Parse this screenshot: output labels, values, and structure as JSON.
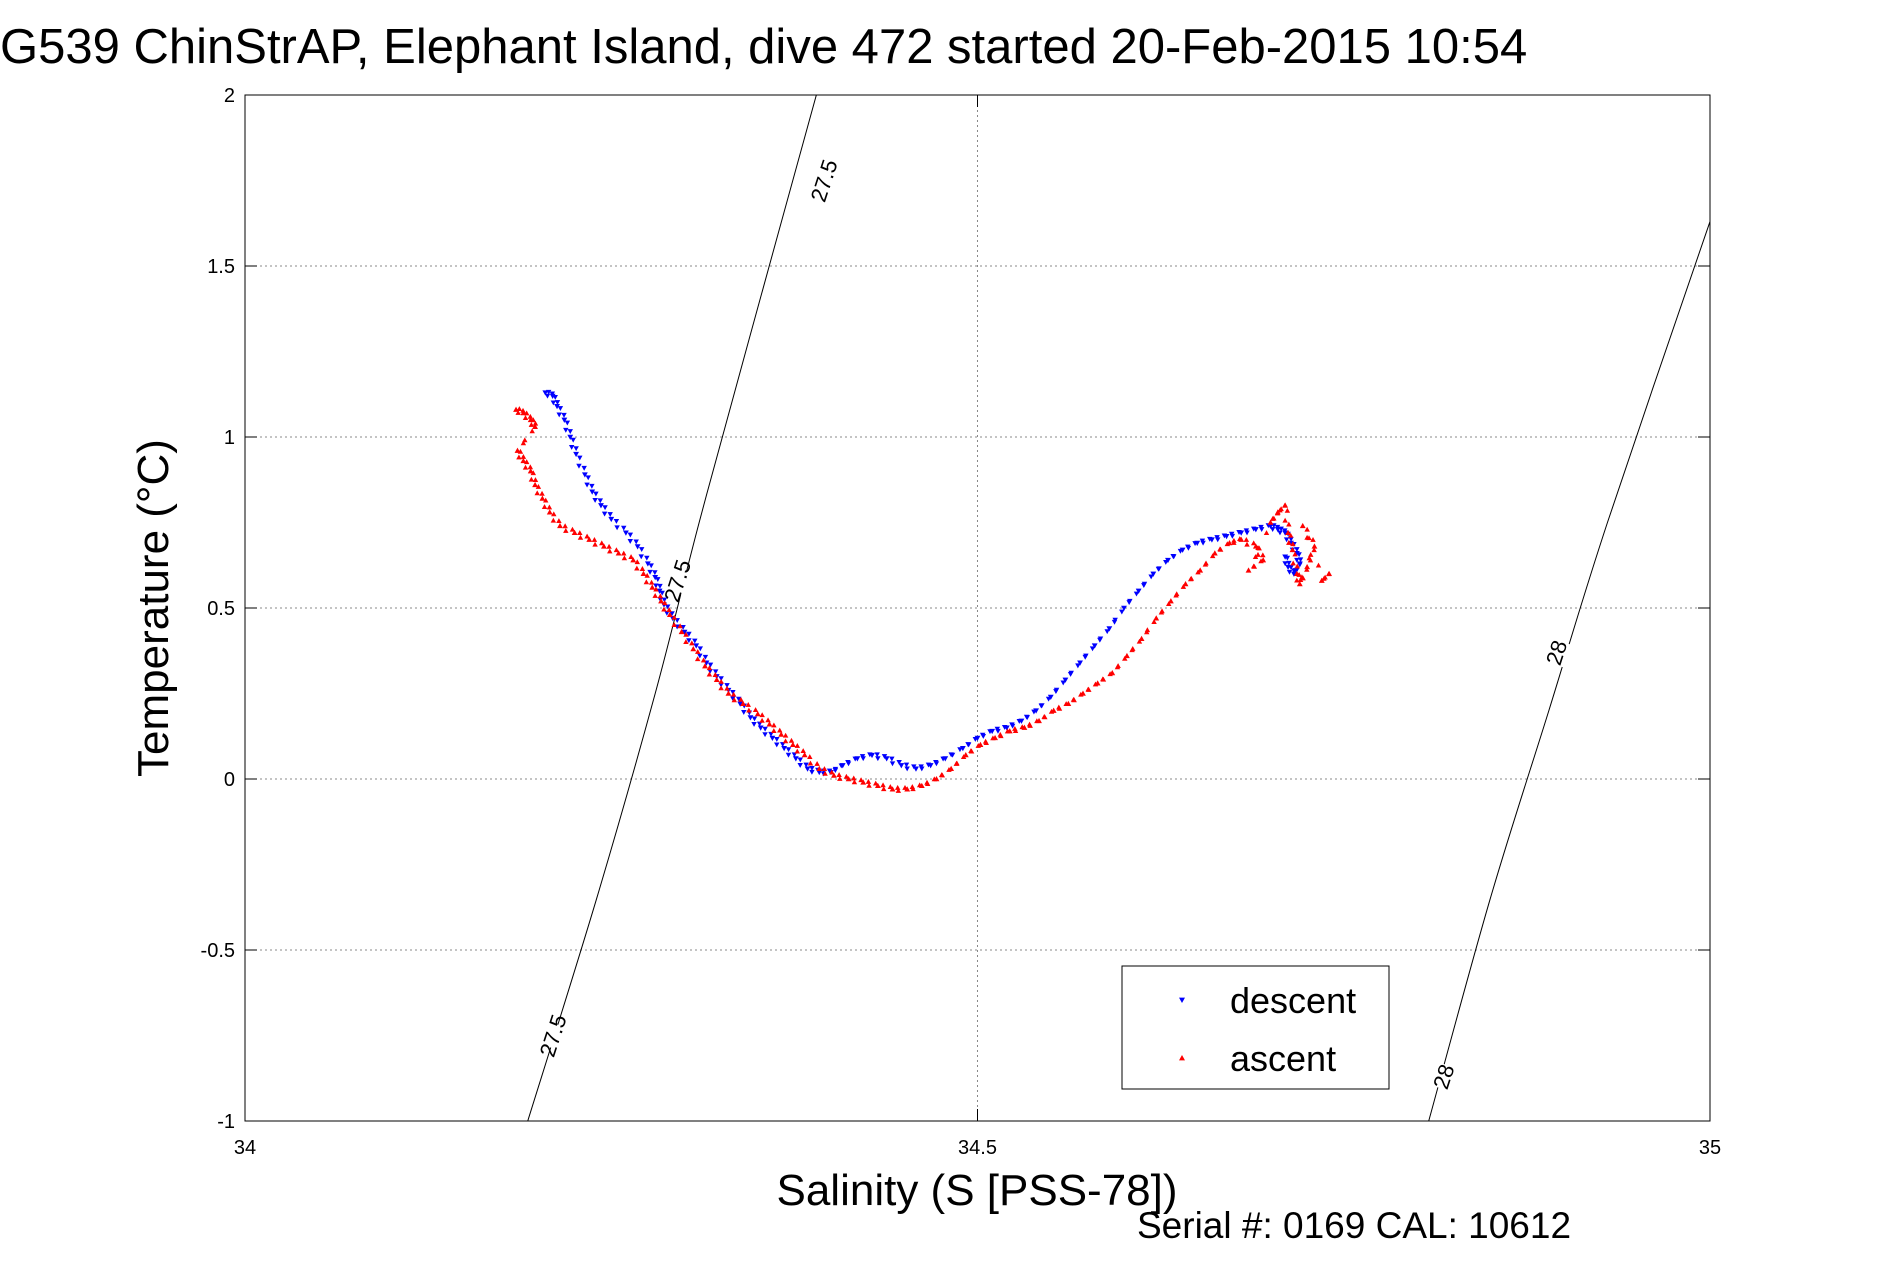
{
  "chart_data": {
    "type": "scatter",
    "title": "G539 ChinStrAP, Elephant Island, dive 472 started 20-Feb-2015 10:54",
    "xlabel": "Salinity (S [PSS-78])",
    "ylabel": "Temperature (°C)",
    "xlim": [
      34,
      35
    ],
    "ylim": [
      -1,
      2
    ],
    "xticks": [
      34,
      34.5,
      35
    ],
    "xtick_labels": [
      "34",
      "34.5",
      "35"
    ],
    "yticks": [
      2,
      1.5,
      1,
      0.5,
      0,
      -0.5,
      -1
    ],
    "ytick_labels": [
      "2",
      "1.5",
      "1",
      "0.5",
      "0",
      "-0.5",
      "-1"
    ],
    "grid": true,
    "legend_position": "bottom-right",
    "footer": "Serial #: 0169 CAL: 10612",
    "series": [
      {
        "name": "descent",
        "color": "#0000ff",
        "marker": "triangle-down",
        "points": [
          [
            34.205,
            1.13
          ],
          [
            34.21,
            1.12
          ],
          [
            34.213,
            1.09
          ],
          [
            34.218,
            1.05
          ],
          [
            34.222,
            1.0
          ],
          [
            34.226,
            0.95
          ],
          [
            34.232,
            0.89
          ],
          [
            34.237,
            0.84
          ],
          [
            34.243,
            0.8
          ],
          [
            34.25,
            0.76
          ],
          [
            34.26,
            0.72
          ],
          [
            34.268,
            0.68
          ],
          [
            34.275,
            0.63
          ],
          [
            34.28,
            0.59
          ],
          [
            34.283,
            0.55
          ],
          [
            34.286,
            0.51
          ],
          [
            34.292,
            0.47
          ],
          [
            34.3,
            0.43
          ],
          [
            34.308,
            0.39
          ],
          [
            34.315,
            0.34
          ],
          [
            34.322,
            0.3
          ],
          [
            34.33,
            0.26
          ],
          [
            34.338,
            0.22
          ],
          [
            34.345,
            0.18
          ],
          [
            34.352,
            0.15
          ],
          [
            34.36,
            0.12
          ],
          [
            34.368,
            0.09
          ],
          [
            34.376,
            0.06
          ],
          [
            34.384,
            0.03
          ],
          [
            34.392,
            0.02
          ],
          [
            34.4,
            0.02
          ],
          [
            34.408,
            0.04
          ],
          [
            34.418,
            0.06
          ],
          [
            34.428,
            0.07
          ],
          [
            34.438,
            0.06
          ],
          [
            34.448,
            0.04
          ],
          [
            34.458,
            0.03
          ],
          [
            34.468,
            0.04
          ],
          [
            34.478,
            0.06
          ],
          [
            34.49,
            0.09
          ],
          [
            34.5,
            0.12
          ],
          [
            34.51,
            0.14
          ],
          [
            34.52,
            0.15
          ],
          [
            34.53,
            0.17
          ],
          [
            34.54,
            0.2
          ],
          [
            34.55,
            0.24
          ],
          [
            34.56,
            0.29
          ],
          [
            34.57,
            0.34
          ],
          [
            34.58,
            0.39
          ],
          [
            34.59,
            0.44
          ],
          [
            34.6,
            0.5
          ],
          [
            34.61,
            0.55
          ],
          [
            34.62,
            0.6
          ],
          [
            34.63,
            0.64
          ],
          [
            34.64,
            0.67
          ],
          [
            34.65,
            0.69
          ],
          [
            34.66,
            0.7
          ],
          [
            34.67,
            0.71
          ],
          [
            34.68,
            0.72
          ],
          [
            34.69,
            0.73
          ],
          [
            34.7,
            0.74
          ],
          [
            34.705,
            0.73
          ],
          [
            34.71,
            0.72
          ],
          [
            34.714,
            0.69
          ],
          [
            34.718,
            0.66
          ],
          [
            34.72,
            0.63
          ],
          [
            34.716,
            0.6
          ],
          [
            34.712,
            0.62
          ],
          [
            34.71,
            0.65
          ]
        ]
      },
      {
        "name": "ascent",
        "color": "#ff0000",
        "marker": "triangle-up",
        "points": [
          [
            34.185,
            1.08
          ],
          [
            34.19,
            1.07
          ],
          [
            34.195,
            1.05
          ],
          [
            34.198,
            1.03
          ],
          [
            34.186,
            0.96
          ],
          [
            34.19,
            0.93
          ],
          [
            34.195,
            0.9
          ],
          [
            34.198,
            0.86
          ],
          [
            34.203,
            0.82
          ],
          [
            34.208,
            0.78
          ],
          [
            34.215,
            0.74
          ],
          [
            34.225,
            0.72
          ],
          [
            34.235,
            0.7
          ],
          [
            34.245,
            0.68
          ],
          [
            34.255,
            0.66
          ],
          [
            34.265,
            0.64
          ],
          [
            34.272,
            0.6
          ],
          [
            34.278,
            0.56
          ],
          [
            34.284,
            0.52
          ],
          [
            34.29,
            0.48
          ],
          [
            34.298,
            0.43
          ],
          [
            34.306,
            0.38
          ],
          [
            34.314,
            0.33
          ],
          [
            34.322,
            0.29
          ],
          [
            34.33,
            0.25
          ],
          [
            34.34,
            0.22
          ],
          [
            34.35,
            0.19
          ],
          [
            34.358,
            0.16
          ],
          [
            34.366,
            0.13
          ],
          [
            34.374,
            0.1
          ],
          [
            34.382,
            0.07
          ],
          [
            34.392,
            0.03
          ],
          [
            34.402,
            0.01
          ],
          [
            34.412,
            0.0
          ],
          [
            34.422,
            -0.01
          ],
          [
            34.432,
            -0.02
          ],
          [
            34.442,
            -0.03
          ],
          [
            34.452,
            -0.03
          ],
          [
            34.462,
            -0.02
          ],
          [
            34.472,
            0.0
          ],
          [
            34.482,
            0.03
          ],
          [
            34.492,
            0.07
          ],
          [
            34.502,
            0.1
          ],
          [
            34.512,
            0.12
          ],
          [
            34.522,
            0.14
          ],
          [
            34.532,
            0.15
          ],
          [
            34.542,
            0.17
          ],
          [
            34.552,
            0.2
          ],
          [
            34.562,
            0.22
          ],
          [
            34.572,
            0.25
          ],
          [
            34.582,
            0.28
          ],
          [
            34.592,
            0.31
          ],
          [
            34.602,
            0.36
          ],
          [
            34.612,
            0.41
          ],
          [
            34.622,
            0.47
          ],
          [
            34.632,
            0.52
          ],
          [
            34.642,
            0.57
          ],
          [
            34.652,
            0.61
          ],
          [
            34.662,
            0.66
          ],
          [
            34.672,
            0.69
          ],
          [
            34.68,
            0.7
          ],
          [
            34.69,
            0.68
          ],
          [
            34.695,
            0.64
          ],
          [
            34.685,
            0.61
          ],
          [
            34.7,
            0.75
          ],
          [
            34.705,
            0.78
          ],
          [
            34.71,
            0.8
          ],
          [
            34.712,
            0.72
          ],
          [
            34.715,
            0.67
          ],
          [
            34.718,
            0.6
          ],
          [
            34.72,
            0.57
          ],
          [
            34.725,
            0.62
          ],
          [
            34.73,
            0.68
          ],
          [
            34.722,
            0.74
          ],
          [
            34.735,
            0.58
          ],
          [
            34.74,
            0.6
          ]
        ]
      }
    ],
    "density_contours": [
      {
        "label": "27.5",
        "points": [
          [
            34.193,
            -1.0
          ],
          [
            34.24,
            -0.35
          ],
          [
            34.28,
            0.25
          ],
          [
            34.31,
            0.75
          ],
          [
            34.345,
            1.3
          ],
          [
            34.39,
            2.0
          ]
        ],
        "label_positions": [
          [
            34.21,
            -0.75
          ],
          [
            34.295,
            0.58
          ],
          [
            34.395,
            1.75
          ]
        ]
      },
      {
        "label": "28",
        "points": [
          [
            34.808,
            -1.0
          ],
          [
            34.85,
            -0.35
          ],
          [
            34.89,
            0.2
          ],
          [
            34.93,
            0.75
          ],
          [
            35.0,
            1.63
          ]
        ],
        "label_positions": [
          [
            34.818,
            -0.87
          ],
          [
            34.895,
            0.37
          ]
        ]
      }
    ]
  }
}
